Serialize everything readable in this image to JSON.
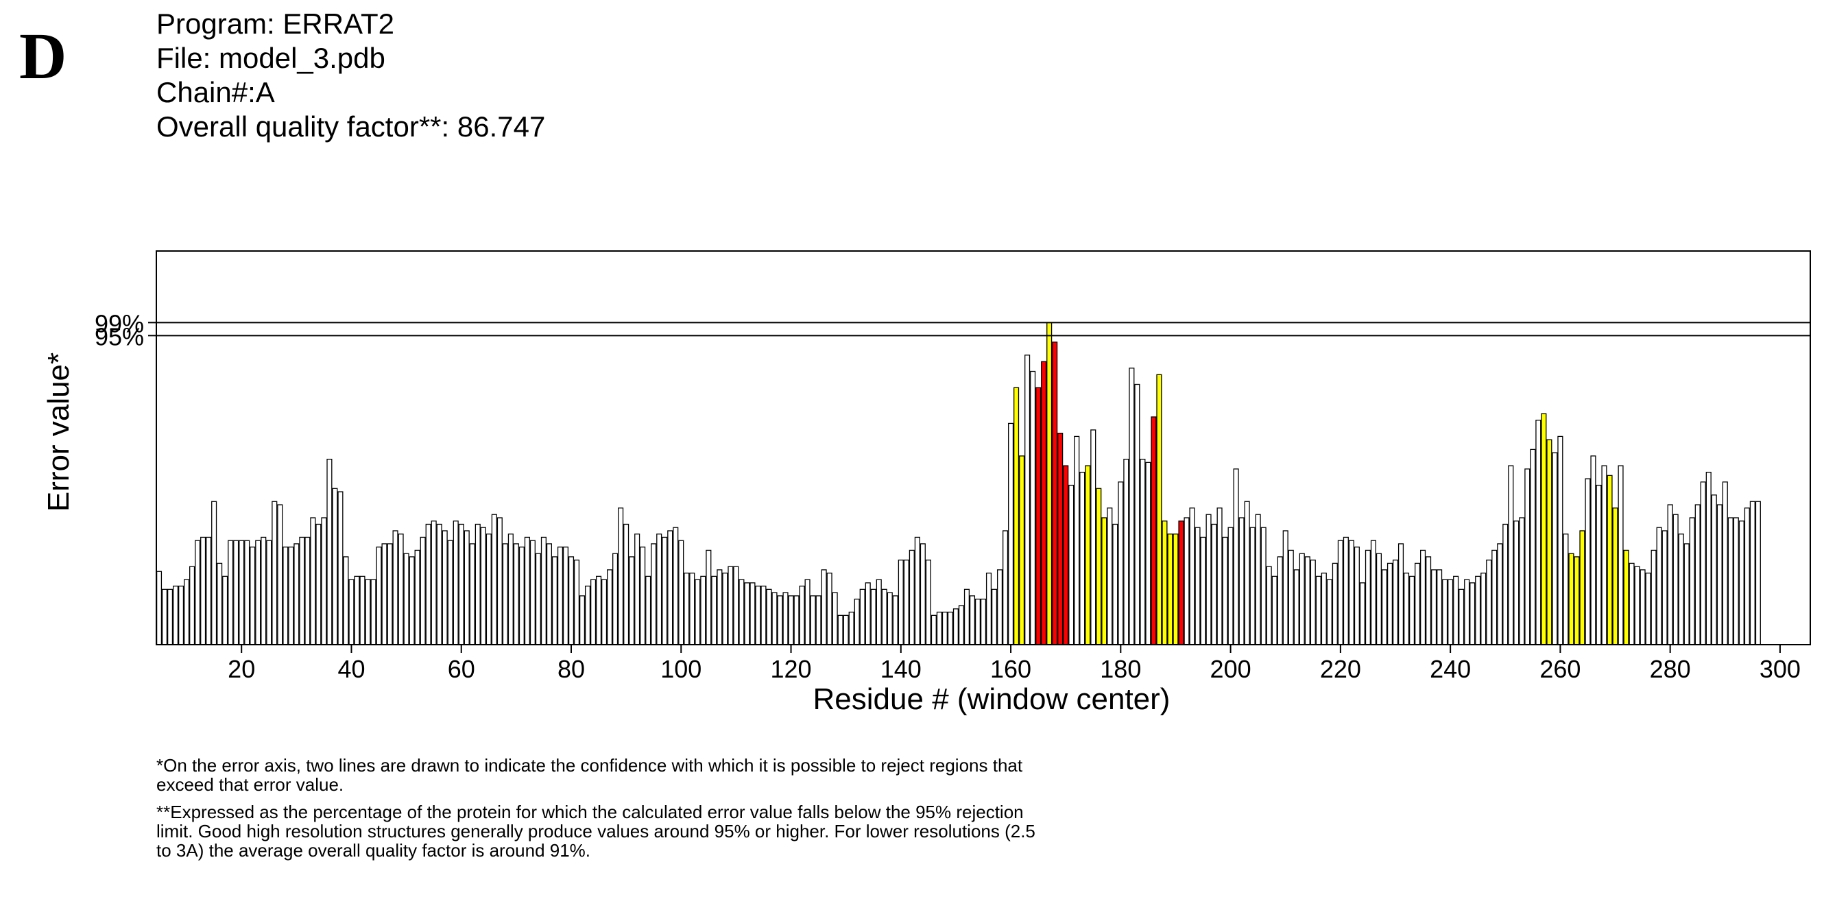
{
  "panel_label": "D",
  "header": {
    "program": "Program: ERRAT2",
    "file": "File: model_3.pdb",
    "chain": "Chain#:A",
    "quality": "Overall quality factor**: 86.747"
  },
  "footnotes": {
    "note1": "*On the error axis, two lines are drawn to indicate the confidence with which it is possible to reject regions that exceed that error value.",
    "note2": "**Expressed as the percentage of the protein for which the calculated error value falls below the 95% rejection limit.  Good high resolution structures generally produce values around 95% or higher.  For lower resolutions (2.5 to 3A) the average overall quality factor is around 91%."
  },
  "colors": {
    "ok": "#ffffff",
    "warn": "#ffff00",
    "error": "#ff0000",
    "outline": "#000000"
  },
  "chart_data": {
    "type": "bar",
    "xlabel": "Residue # (window center)",
    "ylabel": "Error value*",
    "x_ticks": [
      20,
      40,
      60,
      80,
      100,
      120,
      140,
      160,
      180,
      200,
      220,
      240,
      260,
      280,
      300
    ],
    "y_lines": [
      {
        "label": "95%",
        "value": 0.95
      },
      {
        "label": "99%",
        "value": 0.99
      }
    ],
    "x_start": 5,
    "ylim": [
      0,
      1.21
    ],
    "xlim": [
      4.5,
      305.5
    ],
    "grid": false,
    "values": [
      0.225,
      0.17,
      0.17,
      0.18,
      0.18,
      0.2,
      0.24,
      0.32,
      0.33,
      0.33,
      0.44,
      0.25,
      0.21,
      0.32,
      0.32,
      0.32,
      0.32,
      0.3,
      0.32,
      0.33,
      0.32,
      0.44,
      0.43,
      0.3,
      0.3,
      0.31,
      0.33,
      0.33,
      0.39,
      0.37,
      0.39,
      0.57,
      0.48,
      0.47,
      0.27,
      0.2,
      0.21,
      0.21,
      0.2,
      0.2,
      0.3,
      0.31,
      0.31,
      0.35,
      0.34,
      0.28,
      0.27,
      0.29,
      0.33,
      0.37,
      0.38,
      0.37,
      0.35,
      0.32,
      0.38,
      0.37,
      0.35,
      0.31,
      0.37,
      0.36,
      0.34,
      0.4,
      0.39,
      0.31,
      0.34,
      0.31,
      0.3,
      0.33,
      0.32,
      0.28,
      0.33,
      0.31,
      0.27,
      0.3,
      0.3,
      0.27,
      0.26,
      0.15,
      0.18,
      0.2,
      0.21,
      0.2,
      0.23,
      0.28,
      0.42,
      0.37,
      0.27,
      0.34,
      0.3,
      0.21,
      0.31,
      0.34,
      0.33,
      0.35,
      0.36,
      0.32,
      0.22,
      0.22,
      0.2,
      0.21,
      0.29,
      0.21,
      0.23,
      0.22,
      0.24,
      0.24,
      0.2,
      0.19,
      0.19,
      0.18,
      0.18,
      0.17,
      0.16,
      0.15,
      0.16,
      0.15,
      0.15,
      0.18,
      0.2,
      0.15,
      0.15,
      0.23,
      0.22,
      0.16,
      0.09,
      0.09,
      0.1,
      0.14,
      0.17,
      0.19,
      0.17,
      0.2,
      0.17,
      0.16,
      0.15,
      0.26,
      0.26,
      0.29,
      0.33,
      0.31,
      0.26,
      0.09,
      0.1,
      0.1,
      0.1,
      0.11,
      0.12,
      0.17,
      0.15,
      0.14,
      0.14,
      0.22,
      0.17,
      0.23,
      0.35,
      0.68,
      0.79,
      0.58,
      0.89,
      0.84,
      0.79,
      0.87,
      0.99,
      0.93,
      0.65,
      0.55,
      0.49,
      0.64,
      0.53,
      0.55,
      0.66,
      0.48,
      0.39,
      0.42,
      0.37,
      0.5,
      0.57,
      0.85,
      0.8,
      0.57,
      0.56,
      0.7,
      0.83,
      0.38,
      0.34,
      0.34,
      0.38,
      0.39,
      0.42,
      0.36,
      0.33,
      0.4,
      0.37,
      0.42,
      0.33,
      0.36,
      0.54,
      0.39,
      0.44,
      0.36,
      0.4,
      0.36,
      0.24,
      0.21,
      0.27,
      0.35,
      0.29,
      0.23,
      0.28,
      0.27,
      0.26,
      0.21,
      0.22,
      0.2,
      0.25,
      0.32,
      0.33,
      0.32,
      0.3,
      0.19,
      0.29,
      0.32,
      0.28,
      0.23,
      0.25,
      0.26,
      0.31,
      0.22,
      0.21,
      0.25,
      0.29,
      0.27,
      0.23,
      0.23,
      0.2,
      0.2,
      0.21,
      0.17,
      0.2,
      0.19,
      0.21,
      0.22,
      0.26,
      0.29,
      0.31,
      0.37,
      0.55,
      0.38,
      0.39,
      0.54,
      0.6,
      0.69,
      0.71,
      0.63,
      0.59,
      0.64,
      0.34,
      0.28,
      0.27,
      0.35,
      0.51,
      0.58,
      0.49,
      0.55,
      0.52,
      0.42,
      0.55,
      0.29,
      0.25,
      0.24,
      0.23,
      0.22,
      0.29,
      0.36,
      0.35,
      0.43,
      0.4,
      0.34,
      0.31,
      0.39,
      0.43,
      0.5,
      0.53,
      0.46,
      0.43,
      0.5,
      0.39,
      0.39,
      0.38,
      0.42,
      0.44,
      0.44
    ],
    "levels": [
      0,
      0,
      0,
      0,
      0,
      0,
      0,
      0,
      0,
      0,
      0,
      0,
      0,
      0,
      0,
      0,
      0,
      0,
      0,
      0,
      0,
      0,
      0,
      0,
      0,
      0,
      0,
      0,
      0,
      0,
      0,
      0,
      0,
      0,
      0,
      0,
      0,
      0,
      0,
      0,
      0,
      0,
      0,
      0,
      0,
      0,
      0,
      0,
      0,
      0,
      0,
      0,
      0,
      0,
      0,
      0,
      0,
      0,
      0,
      0,
      0,
      0,
      0,
      0,
      0,
      0,
      0,
      0,
      0,
      0,
      0,
      0,
      0,
      0,
      0,
      0,
      0,
      0,
      0,
      0,
      0,
      0,
      0,
      0,
      0,
      0,
      0,
      0,
      0,
      0,
      0,
      0,
      0,
      0,
      0,
      0,
      0,
      0,
      0,
      0,
      0,
      0,
      0,
      0,
      0,
      0,
      0,
      0,
      0,
      0,
      0,
      0,
      0,
      0,
      0,
      0,
      0,
      0,
      0,
      0,
      0,
      0,
      0,
      0,
      0,
      0,
      0,
      0,
      0,
      0,
      0,
      0,
      0,
      0,
      0,
      0,
      0,
      0,
      0,
      0,
      0,
      0,
      0,
      0,
      0,
      0,
      0,
      0,
      0,
      0,
      0,
      0,
      0,
      0,
      0,
      0,
      1,
      1,
      0,
      0,
      2,
      2,
      1,
      2,
      2,
      2,
      0,
      0,
      0,
      1,
      0,
      1,
      1,
      0,
      0,
      0,
      0,
      0,
      0,
      0,
      0,
      2,
      1,
      1,
      1,
      1,
      2,
      0,
      0,
      0,
      0,
      0,
      0,
      0,
      0,
      0,
      0,
      0,
      0,
      0,
      0,
      0,
      0,
      0,
      0,
      0,
      0,
      0,
      0,
      0,
      0,
      0,
      0,
      0,
      0,
      0,
      0,
      0,
      0,
      0,
      0,
      0,
      0,
      0,
      0,
      0,
      0,
      0,
      0,
      0,
      0,
      0,
      0,
      0,
      0,
      0,
      0,
      0,
      0,
      0,
      0,
      0,
      0,
      0,
      0,
      0,
      0,
      0,
      0,
      0,
      0,
      0,
      1,
      1,
      0,
      0,
      0,
      1,
      1,
      1,
      0,
      0,
      0,
      0,
      1,
      1,
      0,
      1,
      0,
      0,
      0,
      0,
      0,
      0,
      0,
      0,
      0,
      0,
      0,
      0,
      0,
      0,
      0,
      0,
      0,
      0,
      0,
      0,
      0,
      0,
      0,
      0,
      0,
      0,
      0,
      0
    ]
  }
}
